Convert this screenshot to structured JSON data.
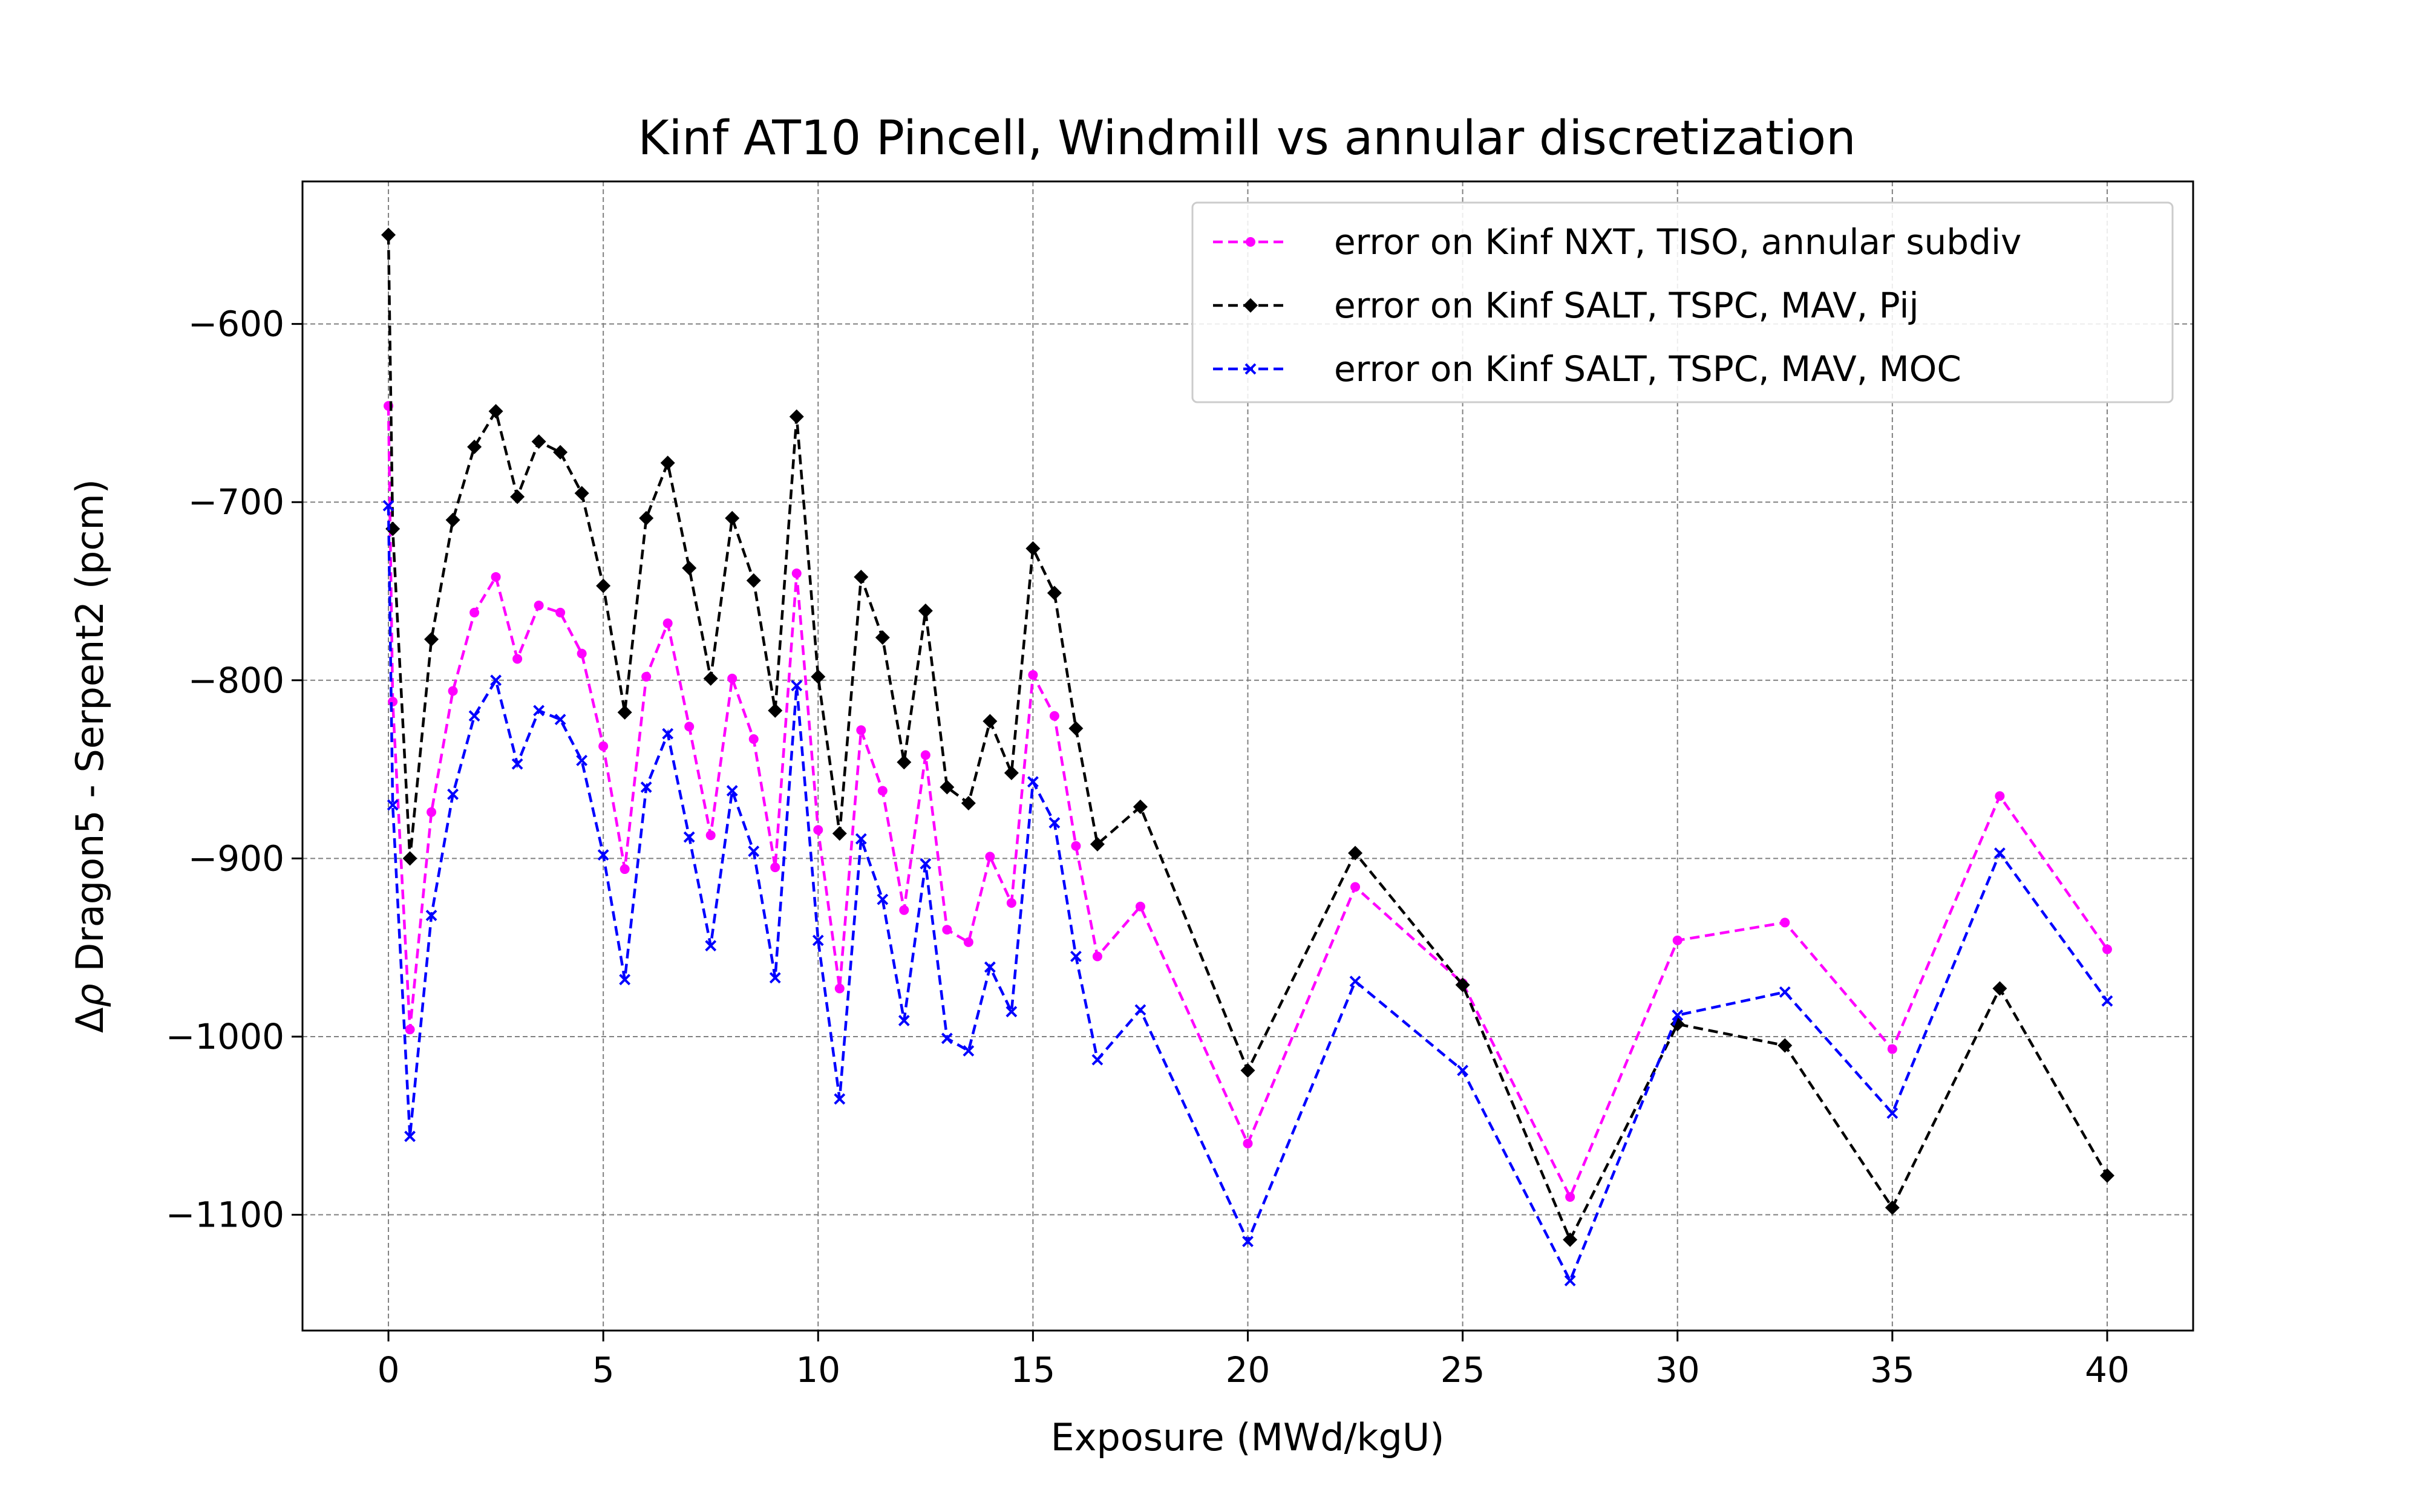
{
  "chart_data": {
    "type": "line",
    "title": "Kinf AT10 Pincell, Windmill vs annular discretization",
    "xlabel": "Exposure (MWd/kgU)",
    "ylabel_prefix": "Δ",
    "ylabel_symbol": "ρ",
    "ylabel_rest": " Dragon5 - Serpent2 (pcm)",
    "xlim": [
      -2,
      42
    ],
    "ylim": [
      -1165,
      -520
    ],
    "xticks": [
      0,
      5,
      10,
      15,
      20,
      25,
      30,
      35,
      40
    ],
    "yticks": [
      -1100,
      -1000,
      -900,
      -800,
      -700,
      -600
    ],
    "xtick_labels": [
      "0",
      "5",
      "10",
      "15",
      "20",
      "25",
      "30",
      "35",
      "40"
    ],
    "ytick_labels": [
      "−1100",
      "−1000",
      "−900",
      "−800",
      "−700",
      "−600"
    ],
    "grid": true,
    "legend_position": "top-right",
    "x": [
      0,
      0.1,
      0.5,
      1,
      1.5,
      2,
      2.5,
      3,
      3.5,
      4,
      4.5,
      5,
      5.5,
      6,
      6.5,
      7,
      7.5,
      8,
      8.5,
      9,
      9.5,
      10,
      10.5,
      11,
      11.5,
      12,
      12.5,
      13,
      13.5,
      14,
      14.5,
      15,
      15.5,
      16,
      16.5,
      17.5,
      20,
      22.5,
      25,
      27.5,
      30,
      32.5,
      35,
      37.5,
      40
    ],
    "series": [
      {
        "name": "error on Kinf NXT, TISO, annular subdiv",
        "color": "#ff00ff",
        "marker": "circle",
        "values": [
          -646,
          -812,
          -996,
          -874,
          -806,
          -762,
          -742,
          -788,
          -758,
          -762,
          -785,
          -837,
          -906,
          -798,
          -768,
          -826,
          -887,
          -799,
          -833,
          -905,
          -740,
          -884,
          -973,
          -828,
          -862,
          -929,
          -842,
          -940,
          -947,
          -899,
          -925,
          -797,
          -820,
          -893,
          -955,
          -927,
          -1060,
          -916,
          -970,
          -1090,
          -946,
          -936,
          -1007,
          -865,
          -951
        ]
      },
      {
        "name": "error on Kinf SALT, TSPC, MAV, Pij",
        "color": "#000000",
        "marker": "diamond",
        "values": [
          -550,
          -715,
          -900,
          -777,
          -710,
          -669,
          -649,
          -697,
          -666,
          -672,
          -695,
          -747,
          -818,
          -709,
          -678,
          -737,
          -799,
          -709,
          -744,
          -817,
          -652,
          -798,
          -886,
          -742,
          -776,
          -846,
          -761,
          -860,
          -869,
          -823,
          -852,
          -726,
          -751,
          -827,
          -892,
          -871,
          -1019,
          -897,
          -971,
          -1114,
          -993,
          -1005,
          -1096,
          -973,
          -1078
        ]
      },
      {
        "name": "error on Kinf SALT, TSPC, MAV, MOC",
        "color": "#0000ff",
        "marker": "x",
        "values": [
          -702,
          -870,
          -1056,
          -932,
          -864,
          -820,
          -800,
          -847,
          -817,
          -822,
          -845,
          -898,
          -968,
          -860,
          -830,
          -888,
          -949,
          -862,
          -896,
          -967,
          -803,
          -946,
          -1035,
          -889,
          -923,
          -991,
          -903,
          -1001,
          -1008,
          -961,
          -986,
          -857,
          -880,
          -955,
          -1013,
          -985,
          -1115,
          -969,
          -1019,
          -1137,
          -988,
          -975,
          -1043,
          -897,
          -980
        ]
      }
    ]
  }
}
